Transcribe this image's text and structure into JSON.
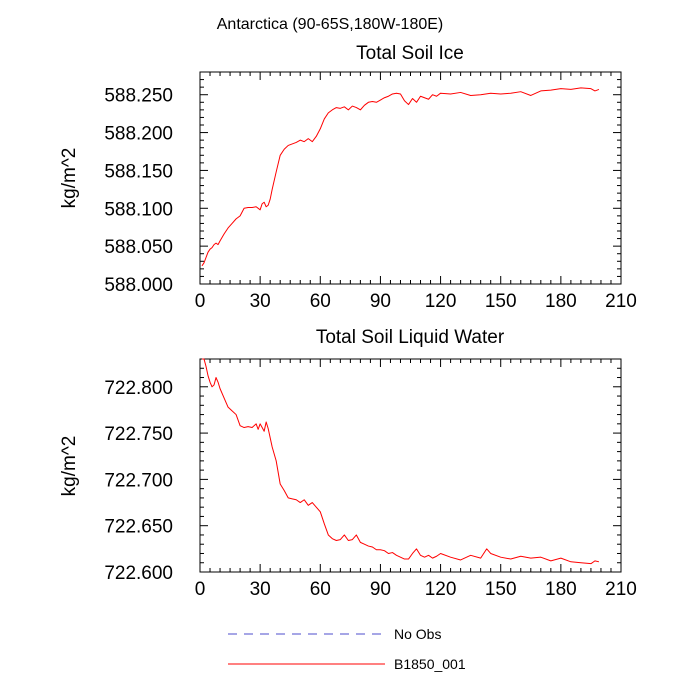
{
  "figure_title": "Antarctica (90-65S,180W-180E)",
  "colors": {
    "series": "#ff0000",
    "no_obs": "#4d4dcc",
    "axis": "#000000"
  },
  "legend": {
    "placement": "bottom-center",
    "items": [
      {
        "label": "No Obs",
        "style": "dashed",
        "color": "#4d4dcc"
      },
      {
        "label": "B1850_001",
        "style": "solid",
        "color": "#ff0000"
      }
    ]
  },
  "chart_data": [
    {
      "type": "line",
      "title": "Total Soil Ice",
      "xlabel": "",
      "ylabel": "kg/m^2",
      "xlim": [
        0,
        210
      ],
      "ylim": [
        588.0,
        588.28
      ],
      "x_ticks": [
        0,
        30,
        60,
        90,
        120,
        150,
        180,
        210
      ],
      "y_ticks": [
        588.0,
        588.05,
        588.1,
        588.15,
        588.2,
        588.25
      ],
      "y_tick_labels": [
        "588.000",
        "588.050",
        "588.100",
        "588.150",
        "588.200",
        "588.250"
      ],
      "grid": false,
      "series": [
        {
          "name": "B1850_001",
          "x": [
            1,
            2,
            3,
            4,
            5,
            6,
            7,
            8,
            9,
            10,
            12,
            14,
            16,
            18,
            20,
            22,
            24,
            26,
            28,
            30,
            31,
            32,
            33,
            34,
            35,
            36,
            38,
            40,
            42,
            44,
            46,
            48,
            50,
            52,
            54,
            56,
            58,
            60,
            62,
            64,
            66,
            68,
            70,
            72,
            74,
            76,
            78,
            80,
            82,
            84,
            86,
            88,
            90,
            92,
            94,
            96,
            98,
            100,
            102,
            104,
            106,
            108,
            110,
            112,
            114,
            116,
            118,
            120,
            125,
            130,
            135,
            140,
            145,
            150,
            155,
            160,
            165,
            170,
            175,
            180,
            185,
            190,
            195,
            197,
            199
          ],
          "values": [
            588.024,
            588.028,
            588.035,
            588.042,
            588.046,
            588.048,
            588.052,
            588.054,
            588.052,
            588.057,
            588.066,
            588.074,
            588.08,
            588.086,
            588.09,
            588.1,
            588.101,
            588.101,
            588.102,
            588.098,
            588.106,
            588.108,
            588.102,
            588.104,
            588.112,
            588.125,
            588.148,
            588.17,
            588.178,
            588.183,
            588.185,
            588.187,
            588.19,
            588.188,
            588.192,
            588.188,
            588.195,
            588.205,
            588.218,
            588.226,
            588.23,
            588.233,
            588.232,
            588.234,
            588.23,
            588.235,
            588.233,
            588.23,
            588.236,
            588.24,
            588.241,
            588.24,
            588.243,
            588.246,
            588.248,
            588.251,
            588.252,
            588.251,
            588.242,
            588.237,
            588.245,
            588.24,
            588.248,
            588.246,
            588.244,
            588.25,
            588.248,
            588.252,
            588.251,
            588.253,
            588.249,
            588.25,
            588.252,
            588.251,
            588.252,
            588.254,
            588.249,
            588.255,
            588.256,
            588.258,
            588.257,
            588.259,
            588.258,
            588.255,
            588.257
          ]
        }
      ]
    },
    {
      "type": "line",
      "title": "Total Soil Liquid Water",
      "xlabel": "",
      "ylabel": "kg/m^2",
      "xlim": [
        0,
        210
      ],
      "ylim": [
        722.6,
        722.83
      ],
      "x_ticks": [
        0,
        30,
        60,
        90,
        120,
        150,
        180,
        210
      ],
      "y_ticks": [
        722.6,
        722.65,
        722.7,
        722.75,
        722.8
      ],
      "y_tick_labels": [
        "722.600",
        "722.650",
        "722.700",
        "722.750",
        "722.800"
      ],
      "grid": false,
      "series": [
        {
          "name": "B1850_001",
          "x": [
            1,
            2,
            3,
            4,
            5,
            6,
            7,
            8,
            9,
            10,
            12,
            14,
            16,
            18,
            20,
            22,
            24,
            26,
            28,
            29,
            30,
            31,
            32,
            33,
            34,
            35,
            36,
            38,
            40,
            42,
            44,
            46,
            48,
            50,
            52,
            54,
            56,
            58,
            60,
            62,
            64,
            66,
            68,
            70,
            72,
            74,
            76,
            78,
            80,
            82,
            84,
            86,
            88,
            90,
            92,
            94,
            96,
            98,
            100,
            102,
            104,
            106,
            108,
            110,
            112,
            114,
            116,
            118,
            120,
            125,
            130,
            135,
            140,
            143,
            145,
            150,
            155,
            160,
            165,
            170,
            175,
            180,
            185,
            190,
            195,
            197,
            199
          ],
          "values": [
            722.83,
            722.83,
            722.822,
            722.812,
            722.805,
            722.8,
            722.802,
            722.81,
            722.805,
            722.798,
            722.788,
            722.778,
            722.774,
            722.77,
            722.758,
            722.756,
            722.757,
            722.756,
            722.76,
            722.754,
            722.76,
            722.756,
            722.752,
            722.762,
            722.755,
            722.745,
            722.735,
            722.72,
            722.695,
            722.688,
            722.68,
            722.679,
            722.678,
            722.675,
            722.678,
            722.672,
            722.675,
            722.67,
            722.665,
            722.652,
            722.64,
            722.636,
            722.634,
            722.635,
            722.64,
            722.634,
            722.635,
            722.64,
            722.632,
            722.63,
            722.628,
            722.627,
            722.624,
            722.624,
            722.623,
            722.62,
            722.621,
            722.618,
            722.616,
            722.614,
            722.614,
            722.62,
            722.625,
            722.618,
            722.616,
            722.618,
            722.615,
            722.617,
            722.62,
            722.616,
            722.613,
            722.618,
            722.615,
            722.625,
            722.62,
            722.616,
            722.614,
            722.617,
            722.615,
            722.616,
            722.612,
            722.615,
            722.611,
            722.61,
            722.609,
            722.612,
            722.611
          ]
        }
      ]
    }
  ]
}
